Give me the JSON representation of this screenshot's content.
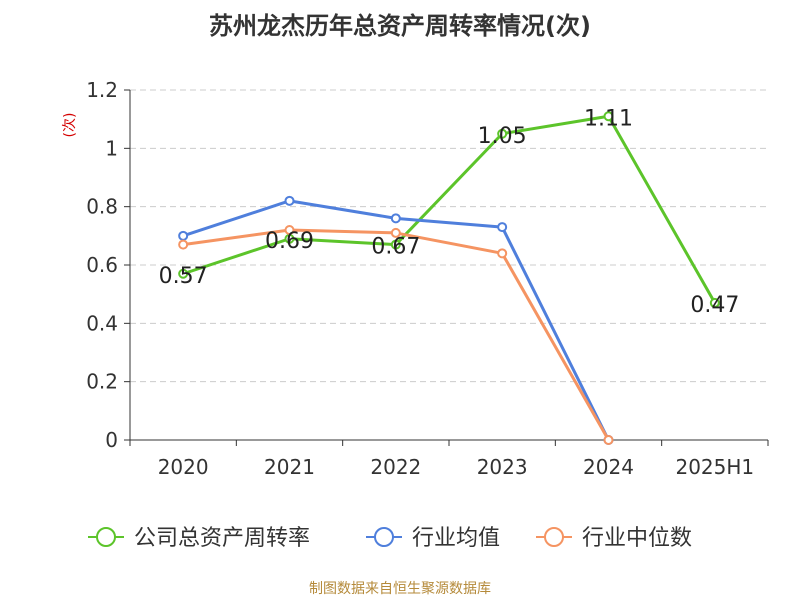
{
  "title": "苏州龙杰历年总资产周转率情况(次)",
  "source": "制图数据来自恒生聚源数据库",
  "chart_data": {
    "type": "line",
    "title": "苏州龙杰历年总资产周转率情况(次)",
    "ylabel": "(次)",
    "xlabel": "",
    "categories": [
      "2020",
      "2021",
      "2022",
      "2023",
      "2024",
      "2025H1"
    ],
    "ylim": [
      0,
      1.2
    ],
    "yticks": [
      0,
      0.2,
      0.4,
      0.6,
      0.8,
      1,
      1.2
    ],
    "ytick_labels": [
      "0",
      "0.2",
      "0.4",
      "0.6",
      "0.8",
      "1",
      "1.2"
    ],
    "grid": true,
    "legend": "bottom",
    "series": [
      {
        "name": "公司总资产周转率",
        "color": "#5cc42a",
        "values": [
          0.57,
          0.69,
          0.67,
          1.05,
          1.11,
          0.47
        ],
        "labels": [
          "0.57",
          "0.69",
          "0.67",
          "1.05",
          "1.11",
          "0.47"
        ]
      },
      {
        "name": "行业均值",
        "color": "#4f7fdc",
        "values": [
          0.7,
          0.82,
          0.76,
          0.73,
          0.0,
          null
        ]
      },
      {
        "name": "行业中位数",
        "color": "#f59462",
        "values": [
          0.67,
          0.72,
          0.71,
          0.64,
          0.0,
          null
        ]
      }
    ]
  }
}
